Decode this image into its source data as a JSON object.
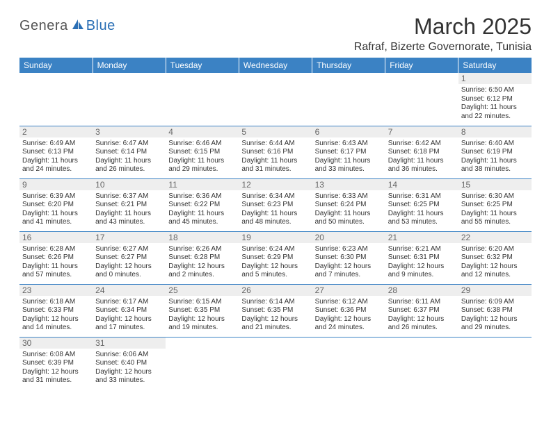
{
  "logo": {
    "part1": "Genera",
    "part2": "Blue"
  },
  "title": "March 2025",
  "location": "Rafraf, Bizerte Governorate, Tunisia",
  "colors": {
    "header_bg": "#3b82c4",
    "header_text": "#ffffff",
    "border": "#3b82c4",
    "daynum_bg": "#eeeeee",
    "daynum_text": "#666666",
    "body_text": "#333333",
    "logo_gray": "#555555",
    "logo_blue": "#2a6fb5",
    "page_bg": "#ffffff"
  },
  "calendar": {
    "type": "table",
    "columns": [
      "Sunday",
      "Monday",
      "Tuesday",
      "Wednesday",
      "Thursday",
      "Friday",
      "Saturday"
    ],
    "cell_font_size_pt": 7.5,
    "header_font_size_pt": 9,
    "daynum_font_size_pt": 9,
    "weeks": [
      [
        null,
        null,
        null,
        null,
        null,
        null,
        {
          "n": "1",
          "sr": "Sunrise: 6:50 AM",
          "ss": "Sunset: 6:12 PM",
          "dl1": "Daylight: 11 hours",
          "dl2": "and 22 minutes."
        }
      ],
      [
        {
          "n": "2",
          "sr": "Sunrise: 6:49 AM",
          "ss": "Sunset: 6:13 PM",
          "dl1": "Daylight: 11 hours",
          "dl2": "and 24 minutes."
        },
        {
          "n": "3",
          "sr": "Sunrise: 6:47 AM",
          "ss": "Sunset: 6:14 PM",
          "dl1": "Daylight: 11 hours",
          "dl2": "and 26 minutes."
        },
        {
          "n": "4",
          "sr": "Sunrise: 6:46 AM",
          "ss": "Sunset: 6:15 PM",
          "dl1": "Daylight: 11 hours",
          "dl2": "and 29 minutes."
        },
        {
          "n": "5",
          "sr": "Sunrise: 6:44 AM",
          "ss": "Sunset: 6:16 PM",
          "dl1": "Daylight: 11 hours",
          "dl2": "and 31 minutes."
        },
        {
          "n": "6",
          "sr": "Sunrise: 6:43 AM",
          "ss": "Sunset: 6:17 PM",
          "dl1": "Daylight: 11 hours",
          "dl2": "and 33 minutes."
        },
        {
          "n": "7",
          "sr": "Sunrise: 6:42 AM",
          "ss": "Sunset: 6:18 PM",
          "dl1": "Daylight: 11 hours",
          "dl2": "and 36 minutes."
        },
        {
          "n": "8",
          "sr": "Sunrise: 6:40 AM",
          "ss": "Sunset: 6:19 PM",
          "dl1": "Daylight: 11 hours",
          "dl2": "and 38 minutes."
        }
      ],
      [
        {
          "n": "9",
          "sr": "Sunrise: 6:39 AM",
          "ss": "Sunset: 6:20 PM",
          "dl1": "Daylight: 11 hours",
          "dl2": "and 41 minutes."
        },
        {
          "n": "10",
          "sr": "Sunrise: 6:37 AM",
          "ss": "Sunset: 6:21 PM",
          "dl1": "Daylight: 11 hours",
          "dl2": "and 43 minutes."
        },
        {
          "n": "11",
          "sr": "Sunrise: 6:36 AM",
          "ss": "Sunset: 6:22 PM",
          "dl1": "Daylight: 11 hours",
          "dl2": "and 45 minutes."
        },
        {
          "n": "12",
          "sr": "Sunrise: 6:34 AM",
          "ss": "Sunset: 6:23 PM",
          "dl1": "Daylight: 11 hours",
          "dl2": "and 48 minutes."
        },
        {
          "n": "13",
          "sr": "Sunrise: 6:33 AM",
          "ss": "Sunset: 6:24 PM",
          "dl1": "Daylight: 11 hours",
          "dl2": "and 50 minutes."
        },
        {
          "n": "14",
          "sr": "Sunrise: 6:31 AM",
          "ss": "Sunset: 6:25 PM",
          "dl1": "Daylight: 11 hours",
          "dl2": "and 53 minutes."
        },
        {
          "n": "15",
          "sr": "Sunrise: 6:30 AM",
          "ss": "Sunset: 6:25 PM",
          "dl1": "Daylight: 11 hours",
          "dl2": "and 55 minutes."
        }
      ],
      [
        {
          "n": "16",
          "sr": "Sunrise: 6:28 AM",
          "ss": "Sunset: 6:26 PM",
          "dl1": "Daylight: 11 hours",
          "dl2": "and 57 minutes."
        },
        {
          "n": "17",
          "sr": "Sunrise: 6:27 AM",
          "ss": "Sunset: 6:27 PM",
          "dl1": "Daylight: 12 hours",
          "dl2": "and 0 minutes."
        },
        {
          "n": "18",
          "sr": "Sunrise: 6:26 AM",
          "ss": "Sunset: 6:28 PM",
          "dl1": "Daylight: 12 hours",
          "dl2": "and 2 minutes."
        },
        {
          "n": "19",
          "sr": "Sunrise: 6:24 AM",
          "ss": "Sunset: 6:29 PM",
          "dl1": "Daylight: 12 hours",
          "dl2": "and 5 minutes."
        },
        {
          "n": "20",
          "sr": "Sunrise: 6:23 AM",
          "ss": "Sunset: 6:30 PM",
          "dl1": "Daylight: 12 hours",
          "dl2": "and 7 minutes."
        },
        {
          "n": "21",
          "sr": "Sunrise: 6:21 AM",
          "ss": "Sunset: 6:31 PM",
          "dl1": "Daylight: 12 hours",
          "dl2": "and 9 minutes."
        },
        {
          "n": "22",
          "sr": "Sunrise: 6:20 AM",
          "ss": "Sunset: 6:32 PM",
          "dl1": "Daylight: 12 hours",
          "dl2": "and 12 minutes."
        }
      ],
      [
        {
          "n": "23",
          "sr": "Sunrise: 6:18 AM",
          "ss": "Sunset: 6:33 PM",
          "dl1": "Daylight: 12 hours",
          "dl2": "and 14 minutes."
        },
        {
          "n": "24",
          "sr": "Sunrise: 6:17 AM",
          "ss": "Sunset: 6:34 PM",
          "dl1": "Daylight: 12 hours",
          "dl2": "and 17 minutes."
        },
        {
          "n": "25",
          "sr": "Sunrise: 6:15 AM",
          "ss": "Sunset: 6:35 PM",
          "dl1": "Daylight: 12 hours",
          "dl2": "and 19 minutes."
        },
        {
          "n": "26",
          "sr": "Sunrise: 6:14 AM",
          "ss": "Sunset: 6:35 PM",
          "dl1": "Daylight: 12 hours",
          "dl2": "and 21 minutes."
        },
        {
          "n": "27",
          "sr": "Sunrise: 6:12 AM",
          "ss": "Sunset: 6:36 PM",
          "dl1": "Daylight: 12 hours",
          "dl2": "and 24 minutes."
        },
        {
          "n": "28",
          "sr": "Sunrise: 6:11 AM",
          "ss": "Sunset: 6:37 PM",
          "dl1": "Daylight: 12 hours",
          "dl2": "and 26 minutes."
        },
        {
          "n": "29",
          "sr": "Sunrise: 6:09 AM",
          "ss": "Sunset: 6:38 PM",
          "dl1": "Daylight: 12 hours",
          "dl2": "and 29 minutes."
        }
      ],
      [
        {
          "n": "30",
          "sr": "Sunrise: 6:08 AM",
          "ss": "Sunset: 6:39 PM",
          "dl1": "Daylight: 12 hours",
          "dl2": "and 31 minutes."
        },
        {
          "n": "31",
          "sr": "Sunrise: 6:06 AM",
          "ss": "Sunset: 6:40 PM",
          "dl1": "Daylight: 12 hours",
          "dl2": "and 33 minutes."
        },
        null,
        null,
        null,
        null,
        null
      ]
    ]
  }
}
